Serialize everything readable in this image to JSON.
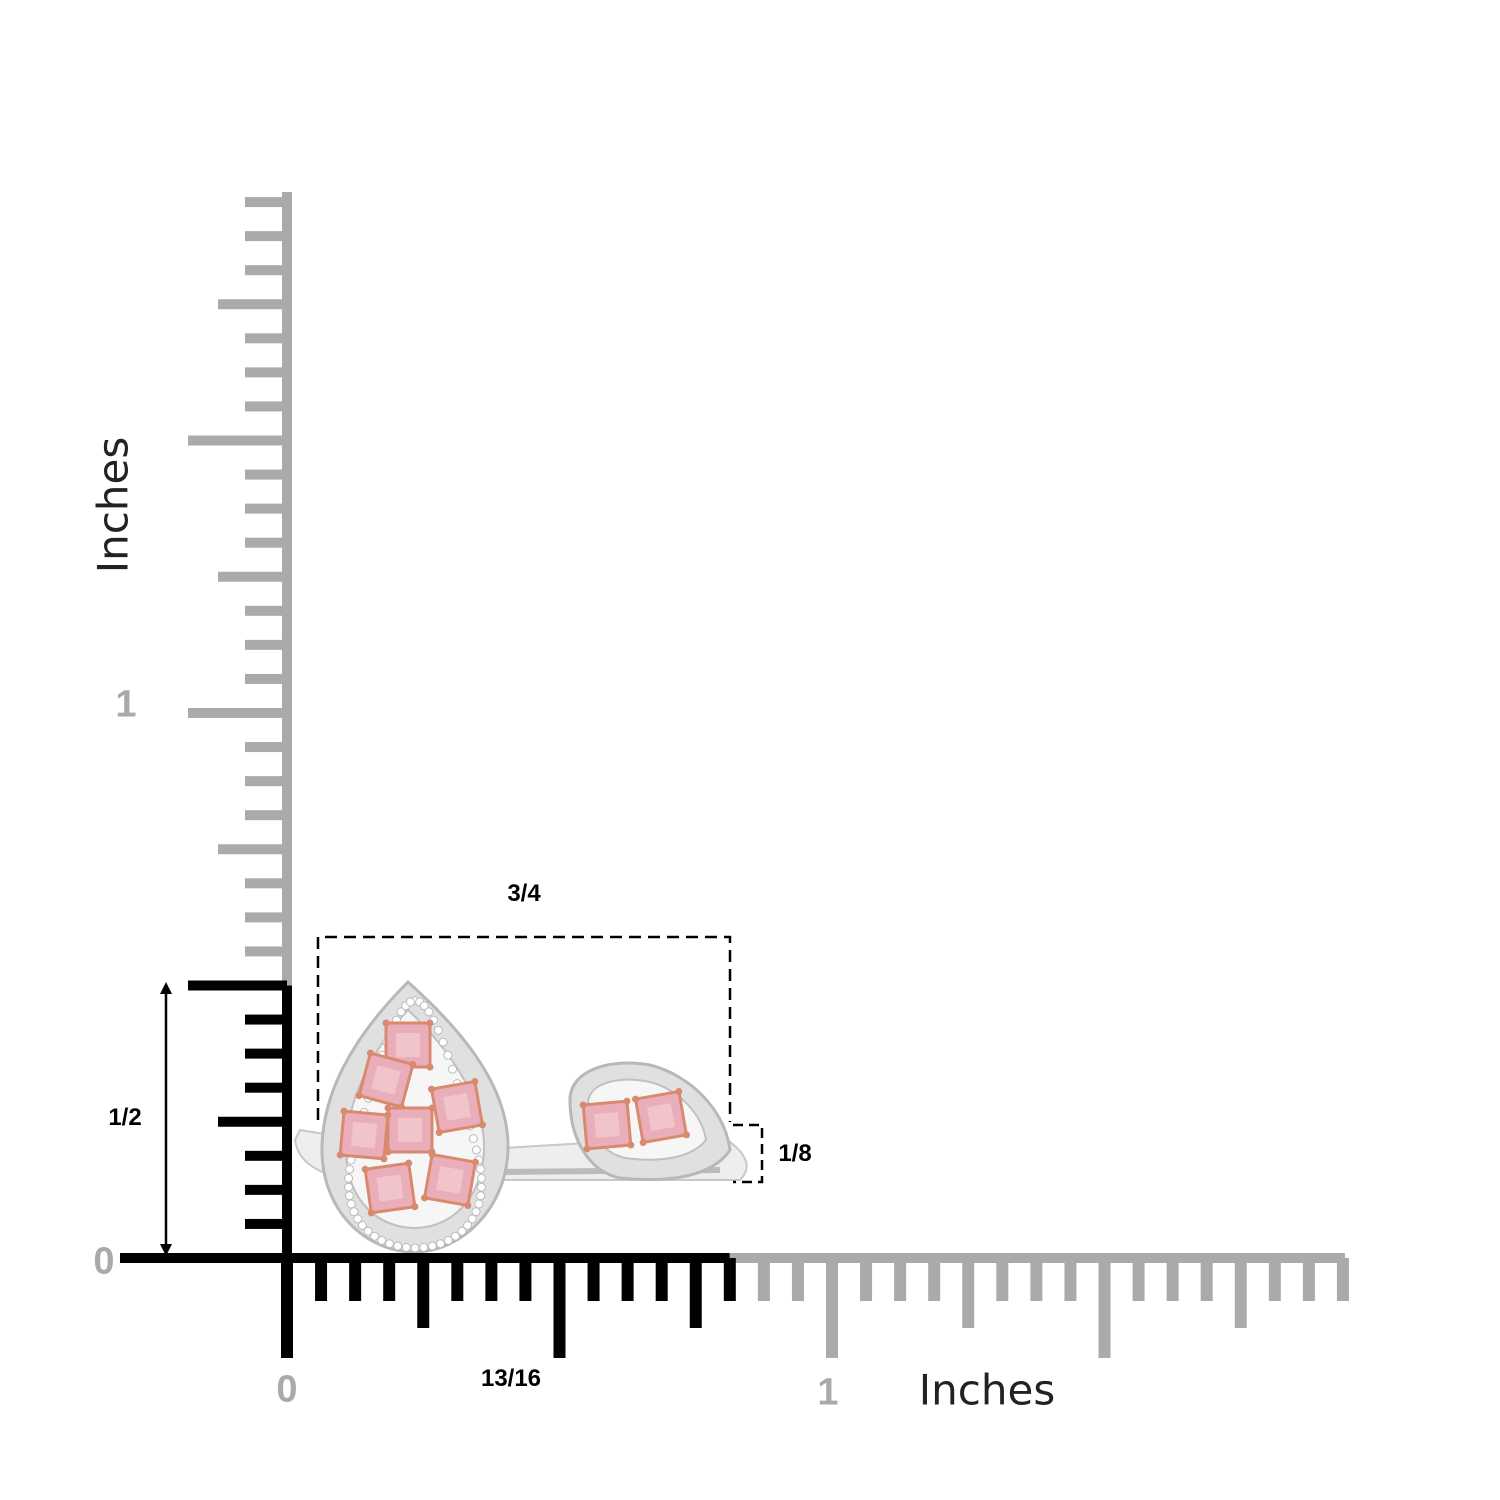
{
  "rulers": {
    "vertical": {
      "unit_label": "Inches",
      "tick_labels": [
        "0",
        "1"
      ],
      "subdivision": 16,
      "highlight_to": 0.5
    },
    "horizontal": {
      "unit_label": "Inches",
      "tick_labels": [
        "0",
        "1"
      ],
      "subdivision": 16,
      "highlight_to": 0.8125
    }
  },
  "dimensions": {
    "width_top": "3/4",
    "height_left": "1/2",
    "small_height": "1/8",
    "total_width": "13/16"
  },
  "colors": {
    "ruler_gray": "#aaaaaa",
    "highlight": "#000000",
    "pink_stone": "#e9aeba",
    "rose_gold": "#d98a6e",
    "halo": "#d8d8d8"
  }
}
